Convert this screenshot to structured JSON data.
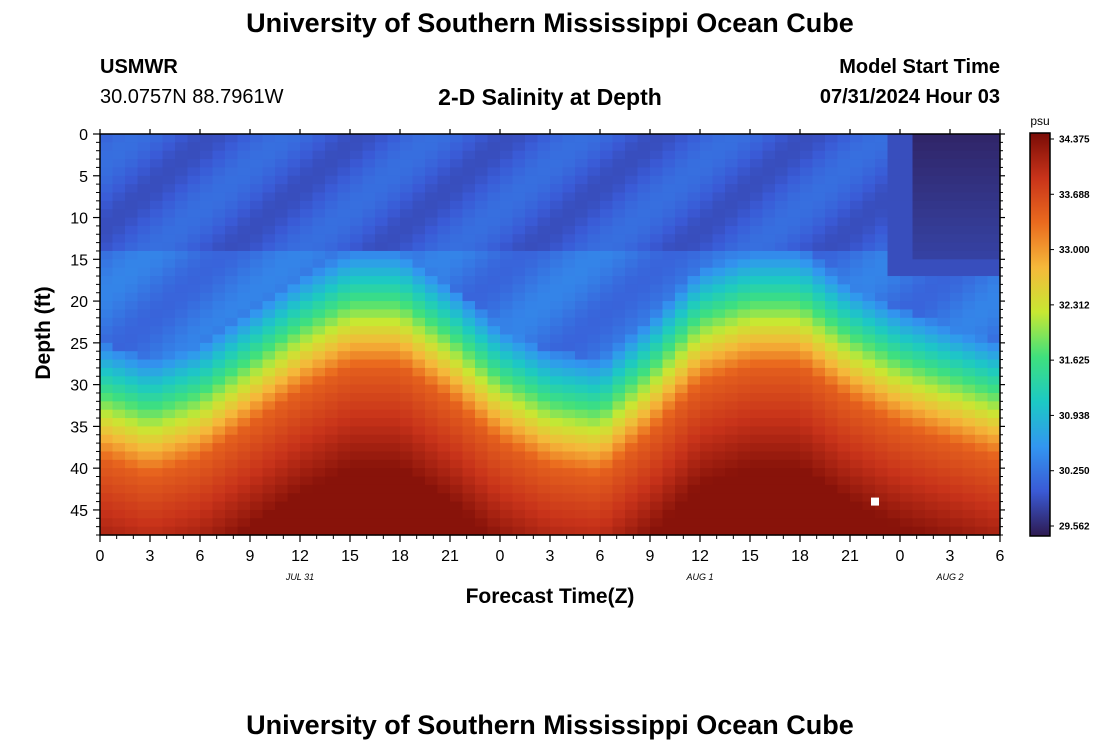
{
  "header": {
    "title": "University of Southern Mississippi Ocean Cube",
    "station": "USMWR",
    "coords": "30.0757N  88.7961W",
    "plot_title": "2-D Salinity at Depth",
    "start_label": "Model Start Time",
    "start_time": "07/31/2024 Hour 03",
    "footer_title": "University of Southern Mississippi Ocean Cube"
  },
  "colors": {
    "stops": [
      "#2e1a50",
      "#3a5ad6",
      "#3296f0",
      "#1cc9c4",
      "#3fe07d",
      "#c8e832",
      "#f5b83a",
      "#ea6a1e",
      "#c8331a",
      "#7a0c06"
    ],
    "marker": "#ffffff"
  },
  "chart_data": {
    "type": "heatmap",
    "title": "2-D Salinity at Depth",
    "xlabel": "Forecast Time(Z)",
    "ylabel": "Depth (ft)",
    "units": "psu",
    "x": [
      0,
      3,
      6,
      9,
      12,
      15,
      18,
      21,
      24,
      27,
      30,
      33,
      36,
      39,
      42,
      45,
      48,
      51,
      54
    ],
    "x_ticklabels": [
      "0",
      "3",
      "6",
      "9",
      "12",
      "15",
      "18",
      "21",
      "0",
      "3",
      "6",
      "9",
      "12",
      "15",
      "18",
      "21",
      "0",
      "3",
      "6"
    ],
    "day_labels": [
      {
        "x": 12,
        "label": "JUL 31"
      },
      {
        "x": 36,
        "label": "AUG 1"
      },
      {
        "x": 51,
        "label": "AUG 2"
      }
    ],
    "xlim": [
      0,
      54
    ],
    "ylim": [
      0,
      48
    ],
    "y_ticks": [
      0,
      5,
      10,
      15,
      20,
      25,
      30,
      35,
      40,
      45
    ],
    "colorbar": {
      "min": 29.562,
      "max": 34.375,
      "ticks": [
        "34.375",
        "33.688",
        "33.000",
        "32.312",
        "31.625",
        "30.938",
        "30.250",
        "29.562"
      ]
    },
    "halocline_depth_ft": [
      {
        "t": 0,
        "depth": 31
      },
      {
        "t": 3,
        "depth": 33
      },
      {
        "t": 6,
        "depth": 31
      },
      {
        "t": 9,
        "depth": 27
      },
      {
        "t": 12,
        "depth": 23
      },
      {
        "t": 15,
        "depth": 20
      },
      {
        "t": 18,
        "depth": 20
      },
      {
        "t": 21,
        "depth": 24
      },
      {
        "t": 24,
        "depth": 29
      },
      {
        "t": 27,
        "depth": 32
      },
      {
        "t": 30,
        "depth": 33
      },
      {
        "t": 33,
        "depth": 28
      },
      {
        "t": 36,
        "depth": 22
      },
      {
        "t": 39,
        "depth": 20
      },
      {
        "t": 42,
        "depth": 20
      },
      {
        "t": 45,
        "depth": 24
      },
      {
        "t": 48,
        "depth": 27
      },
      {
        "t": 51,
        "depth": 29
      },
      {
        "t": 54,
        "depth": 31
      }
    ],
    "fresh_patch": {
      "t_start": 48.5,
      "t_end": 54,
      "depth_start": 0,
      "depth_end": 15
    },
    "marker": {
      "t": 46.5,
      "depth": 44
    }
  }
}
